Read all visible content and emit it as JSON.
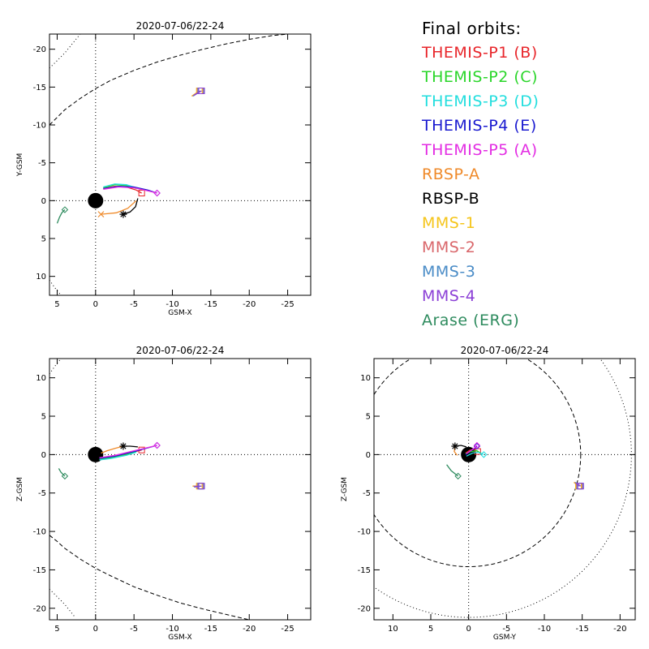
{
  "legend": {
    "title": "Final orbits:",
    "items": [
      {
        "label": "THEMIS-P1 (B)",
        "color": "#e8262b"
      },
      {
        "label": "THEMIS-P2 (C)",
        "color": "#2ad62a"
      },
      {
        "label": "THEMIS-P3 (D)",
        "color": "#22dede"
      },
      {
        "label": "THEMIS-P4 (E)",
        "color": "#1a1ad0"
      },
      {
        "label": "THEMIS-P5 (A)",
        "color": "#e32de3"
      },
      {
        "label": "RBSP-A",
        "color": "#ef8a2a"
      },
      {
        "label": "RBSP-B",
        "color": "#000000"
      },
      {
        "label": "MMS-1",
        "color": "#f5c51a"
      },
      {
        "label": "MMS-2",
        "color": "#d9666a"
      },
      {
        "label": "MMS-3",
        "color": "#4a8cc7"
      },
      {
        "label": "MMS-4",
        "color": "#8b3fd6"
      },
      {
        "label": "Arase (ERG)",
        "color": "#2e8b5e"
      }
    ]
  },
  "chart_data": [
    {
      "type": "scatter",
      "title": "2020-07-06/22-24",
      "xlabel": "GSM-X",
      "ylabel": "Y-GSM",
      "xlim": [
        6,
        -28
      ],
      "ylim": [
        12.5,
        -22
      ],
      "xticks": [
        5,
        0,
        -5,
        -10,
        -15,
        -20,
        -25
      ],
      "yticks": [
        -20,
        -15,
        -10,
        -5,
        0,
        5,
        10
      ],
      "reference_lines": {
        "x0": true,
        "y0": true
      },
      "earth": {
        "x": 0,
        "y": 0
      },
      "tracks": [
        {
          "name": "THEMIS-P1 (B)",
          "color": "#e8262b",
          "points": [
            [
              -1,
              -1.6
            ],
            [
              -2.5,
              -1.9
            ],
            [
              -4,
              -1.8
            ],
            [
              -5.3,
              -1.4
            ],
            [
              -6,
              -1
            ]
          ],
          "end_marker": "square"
        },
        {
          "name": "THEMIS-P2 (C)",
          "color": "#2ad62a",
          "points": [
            [
              -1,
              -1.7
            ],
            [
              -2.5,
              -2.1
            ],
            [
              -4,
              -2
            ],
            [
              -5.3,
              -1.6
            ]
          ],
          "end_marker": "none"
        },
        {
          "name": "THEMIS-P3 (D)",
          "color": "#22dede",
          "points": [
            [
              -1,
              -1.8
            ],
            [
              -2.5,
              -2.2
            ],
            [
              -4,
              -2.1
            ],
            [
              -5.3,
              -1.7
            ]
          ],
          "end_marker": "none"
        },
        {
          "name": "THEMIS-P4 (E)",
          "color": "#1a1ad0",
          "points": [
            [
              -1,
              -1.6
            ],
            [
              -3,
              -1.9
            ],
            [
              -5,
              -1.8
            ],
            [
              -6.8,
              -1.4
            ],
            [
              -8,
              -1
            ]
          ],
          "end_marker": "diamond"
        },
        {
          "name": "THEMIS-P5 (A)",
          "color": "#e32de3",
          "points": [
            [
              -1,
              -1.5
            ],
            [
              -3,
              -1.8
            ],
            [
              -5,
              -1.7
            ],
            [
              -6.8,
              -1.3
            ],
            [
              -8,
              -1
            ]
          ],
          "end_marker": "diamond"
        },
        {
          "name": "RBSP-A",
          "color": "#ef8a2a",
          "points": [
            [
              -5.3,
              0
            ],
            [
              -4.2,
              1
            ],
            [
              -2.7,
              1.6
            ],
            [
              -0.7,
              1.8
            ]
          ],
          "end_marker": "x"
        },
        {
          "name": "RBSP-B",
          "color": "#000000",
          "points": [
            [
              -5.5,
              -0.3
            ],
            [
              -5.2,
              0.8
            ],
            [
              -4.5,
              1.5
            ],
            [
              -3.6,
              1.8
            ]
          ],
          "end_marker": "asterisk"
        },
        {
          "name": "MMS-1",
          "color": "#f5c51a",
          "points": [
            [
              -12.5,
              -13.8
            ],
            [
              -13.5,
              -14.5
            ]
          ],
          "end_marker": "square"
        },
        {
          "name": "MMS-2",
          "color": "#d9666a",
          "points": [
            [
              -12.6,
              -13.8
            ],
            [
              -13.6,
              -14.5
            ]
          ],
          "end_marker": "square"
        },
        {
          "name": "MMS-3",
          "color": "#4a8cc7",
          "points": [
            [
              -12.7,
              -13.8
            ],
            [
              -13.7,
              -14.5
            ]
          ],
          "end_marker": "square"
        },
        {
          "name": "MMS-4",
          "color": "#8b3fd6",
          "points": [
            [
              -12.8,
              -13.9
            ],
            [
              -13.8,
              -14.5
            ]
          ],
          "end_marker": "square"
        },
        {
          "name": "Arase (ERG)",
          "color": "#2e8b5e",
          "points": [
            [
              5,
              3
            ],
            [
              4.7,
              2.2
            ],
            [
              4.4,
              1.6
            ],
            [
              4,
              1.2
            ]
          ],
          "end_marker": "diamond"
        }
      ],
      "boundaries": [
        {
          "style": "dashed",
          "points": [
            [
              6,
              -10
            ],
            [
              5,
              -11
            ],
            [
              4,
              -12
            ],
            [
              2,
              -13.5
            ],
            [
              0,
              -14.8
            ],
            [
              -2,
              -15.9
            ],
            [
              -5,
              -17.2
            ],
            [
              -8,
              -18.3
            ],
            [
              -11,
              -19.2
            ],
            [
              -14,
              -20
            ],
            [
              -17,
              -20.7
            ],
            [
              -20,
              -21.3
            ],
            [
              -23,
              -21.8
            ],
            [
              -25,
              -22
            ]
          ]
        },
        {
          "style": "dotted",
          "points": [
            [
              6,
              -17.5
            ],
            [
              5,
              -18.5
            ],
            [
              4,
              -19.5
            ],
            [
              2.8,
              -21
            ],
            [
              2,
              -22
            ]
          ]
        },
        {
          "style": "dotted",
          "points": [
            [
              6,
              10.5
            ],
            [
              5.3,
              11.5
            ],
            [
              4.5,
              12.5
            ]
          ]
        }
      ]
    },
    {
      "type": "scatter",
      "title": "2020-07-06/22-24",
      "xlabel": "GSM-X",
      "ylabel": "Z-GSM",
      "xlim": [
        6,
        -28
      ],
      "ylim": [
        -21.5,
        12.5
      ],
      "xticks": [
        5,
        0,
        -5,
        -10,
        -15,
        -20,
        -25
      ],
      "yticks": [
        -20,
        -15,
        -10,
        -5,
        0,
        5,
        10
      ],
      "reference_lines": {
        "x0": true,
        "y0": true
      },
      "earth": {
        "x": 0,
        "y": 0
      },
      "tracks": [
        {
          "name": "THEMIS-P1 (B)",
          "color": "#e8262b",
          "points": [
            [
              -0.5,
              -0.5
            ],
            [
              -2,
              -0.3
            ],
            [
              -4,
              0.1
            ],
            [
              -6,
              0.6
            ]
          ],
          "end_marker": "square"
        },
        {
          "name": "THEMIS-P2 (C)",
          "color": "#2ad62a",
          "points": [
            [
              -0.5,
              -0.6
            ],
            [
              -2,
              -0.4
            ],
            [
              -4,
              0
            ],
            [
              -5.3,
              0.4
            ]
          ],
          "end_marker": "none"
        },
        {
          "name": "THEMIS-P3 (D)",
          "color": "#22dede",
          "points": [
            [
              -0.5,
              -0.7
            ],
            [
              -2,
              -0.5
            ],
            [
              -4,
              -0.1
            ],
            [
              -5.3,
              0.3
            ]
          ],
          "end_marker": "none"
        },
        {
          "name": "THEMIS-P4 (E)",
          "color": "#1a1ad0",
          "points": [
            [
              -0.5,
              -0.5
            ],
            [
              -2.5,
              -0.2
            ],
            [
              -5,
              0.4
            ],
            [
              -8,
              1.2
            ]
          ],
          "end_marker": "diamond"
        },
        {
          "name": "THEMIS-P5 (A)",
          "color": "#e32de3",
          "points": [
            [
              -0.5,
              -0.4
            ],
            [
              -2.5,
              -0.1
            ],
            [
              -5,
              0.5
            ],
            [
              -8,
              1.2
            ]
          ],
          "end_marker": "diamond"
        },
        {
          "name": "RBSP-A",
          "color": "#ef8a2a",
          "points": [
            [
              -0.7,
              0.2
            ],
            [
              -1.5,
              0.5
            ],
            [
              -2.5,
              0.8
            ],
            [
              -3.6,
              1.1
            ]
          ],
          "end_marker": "none"
        },
        {
          "name": "RBSP-B",
          "color": "#000000",
          "points": [
            [
              -5.5,
              1
            ],
            [
              -4.5,
              1.1
            ],
            [
              -3.6,
              1.1
            ]
          ],
          "end_marker": "asterisk"
        },
        {
          "name": "MMS-1",
          "color": "#f5c51a",
          "points": [
            [
              -12.6,
              -4.1
            ],
            [
              -13.5,
              -4.1
            ]
          ],
          "end_marker": "square"
        },
        {
          "name": "MMS-2",
          "color": "#d9666a",
          "points": [
            [
              -12.7,
              -4.1
            ],
            [
              -13.6,
              -4.1
            ]
          ],
          "end_marker": "square"
        },
        {
          "name": "MMS-3",
          "color": "#4a8cc7",
          "points": [
            [
              -12.8,
              -4.2
            ],
            [
              -13.7,
              -4.1
            ]
          ],
          "end_marker": "square"
        },
        {
          "name": "MMS-4",
          "color": "#8b3fd6",
          "points": [
            [
              -12.9,
              -4.2
            ],
            [
              -13.8,
              -4.1
            ]
          ],
          "end_marker": "square"
        },
        {
          "name": "Arase (ERG)",
          "color": "#2e8b5e",
          "points": [
            [
              4.8,
              -1.8
            ],
            [
              4.5,
              -2.3
            ],
            [
              4,
              -2.8
            ]
          ],
          "end_marker": "diamond"
        }
      ],
      "boundaries": [
        {
          "style": "dashed",
          "points": [
            [
              6,
              -10.5
            ],
            [
              5,
              -11.3
            ],
            [
              4,
              -12.2
            ],
            [
              2,
              -13.6
            ],
            [
              0,
              -14.8
            ],
            [
              -2,
              -15.8
            ],
            [
              -5,
              -17.2
            ],
            [
              -8,
              -18.3
            ],
            [
              -11,
              -19.3
            ],
            [
              -14,
              -20.1
            ],
            [
              -17,
              -20.8
            ],
            [
              -20,
              -21.5
            ]
          ]
        },
        {
          "style": "dotted",
          "points": [
            [
              6,
              -17.5
            ],
            [
              5,
              -18.5
            ],
            [
              4,
              -19.5
            ],
            [
              2.8,
              -21
            ]
          ]
        },
        {
          "style": "dotted",
          "points": [
            [
              6,
              10.5
            ],
            [
              5.3,
              11.5
            ],
            [
              4.5,
              12.5
            ]
          ]
        }
      ]
    },
    {
      "type": "scatter",
      "title": "2020-07-06/22-24",
      "xlabel": "GSM-Y",
      "ylabel": "Z-GSM",
      "xlim": [
        12.5,
        -22
      ],
      "ylim": [
        -21.5,
        12.5
      ],
      "xticks": [
        10,
        5,
        0,
        -5,
        -10,
        -15,
        -20
      ],
      "yticks": [
        -20,
        -15,
        -10,
        -5,
        0,
        5,
        10
      ],
      "reference_lines": {
        "x0": true,
        "y0": true
      },
      "earth": {
        "x": 0,
        "y": 0
      },
      "tracks": [
        {
          "name": "THEMIS-P1 (B)",
          "color": "#e8262b",
          "points": [
            [
              0.4,
              0.2
            ],
            [
              -0.2,
              0.6
            ],
            [
              -0.8,
              0.7
            ],
            [
              -1.2,
              0.4
            ]
          ],
          "end_marker": "square"
        },
        {
          "name": "THEMIS-P2 (C)",
          "color": "#2ad62a",
          "points": [
            [
              0.4,
              0.1
            ],
            [
              -0.3,
              0.4
            ],
            [
              -1.1,
              0.5
            ],
            [
              -1.6,
              0.2
            ]
          ],
          "end_marker": "none"
        },
        {
          "name": "THEMIS-P3 (D)",
          "color": "#22dede",
          "points": [
            [
              0.3,
              -0.2
            ],
            [
              -0.5,
              0.2
            ],
            [
              -1.3,
              0.3
            ],
            [
              -2,
              0
            ]
          ],
          "end_marker": "diamond"
        },
        {
          "name": "THEMIS-P4 (E)",
          "color": "#1a1ad0",
          "points": [
            [
              0.4,
              0
            ],
            [
              -0.3,
              0.5
            ],
            [
              -0.8,
              0.8
            ],
            [
              -1.1,
              1.1
            ]
          ],
          "end_marker": "diamond"
        },
        {
          "name": "THEMIS-P5 (A)",
          "color": "#e32de3",
          "points": [
            [
              0.3,
              0.1
            ],
            [
              -0.4,
              0.6
            ],
            [
              -0.8,
              0.9
            ],
            [
              -1.1,
              1.2
            ]
          ],
          "end_marker": "diamond"
        },
        {
          "name": "RBSP-A",
          "color": "#ef8a2a",
          "points": [
            [
              1.5,
              -0.1
            ],
            [
              1.9,
              0.4
            ],
            [
              1.8,
              1
            ]
          ],
          "end_marker": "none"
        },
        {
          "name": "RBSP-B",
          "color": "#000000",
          "points": [
            [
              0.3,
              1
            ],
            [
              1,
              1.2
            ],
            [
              1.8,
              1.1
            ]
          ],
          "end_marker": "asterisk"
        },
        {
          "name": "MMS-1",
          "color": "#f5c51a",
          "points": [
            [
              -13.9,
              -3.6
            ],
            [
              -14.5,
              -4.1
            ]
          ],
          "end_marker": "square"
        },
        {
          "name": "MMS-2",
          "color": "#d9666a",
          "points": [
            [
              -14,
              -3.6
            ],
            [
              -14.6,
              -4.1
            ]
          ],
          "end_marker": "square"
        },
        {
          "name": "MMS-3",
          "color": "#4a8cc7",
          "points": [
            [
              -14.1,
              -3.6
            ],
            [
              -14.7,
              -4.1
            ]
          ],
          "end_marker": "square"
        },
        {
          "name": "MMS-4",
          "color": "#8b3fd6",
          "points": [
            [
              -14.2,
              -3.7
            ],
            [
              -14.8,
              -4.1
            ]
          ],
          "end_marker": "square"
        },
        {
          "name": "Arase (ERG)",
          "color": "#2e8b5e",
          "points": [
            [
              2.9,
              -1.3
            ],
            [
              2.3,
              -2.1
            ],
            [
              1.4,
              -2.8
            ]
          ],
          "end_marker": "diamond"
        }
      ],
      "boundaries": [
        {
          "style": "dashed",
          "circle": {
            "cx": 0,
            "cy": 0,
            "r": 14.8
          }
        },
        {
          "style": "dotted",
          "circle": {
            "cx": 0,
            "cy": 0,
            "r": 21.5
          }
        }
      ]
    }
  ]
}
